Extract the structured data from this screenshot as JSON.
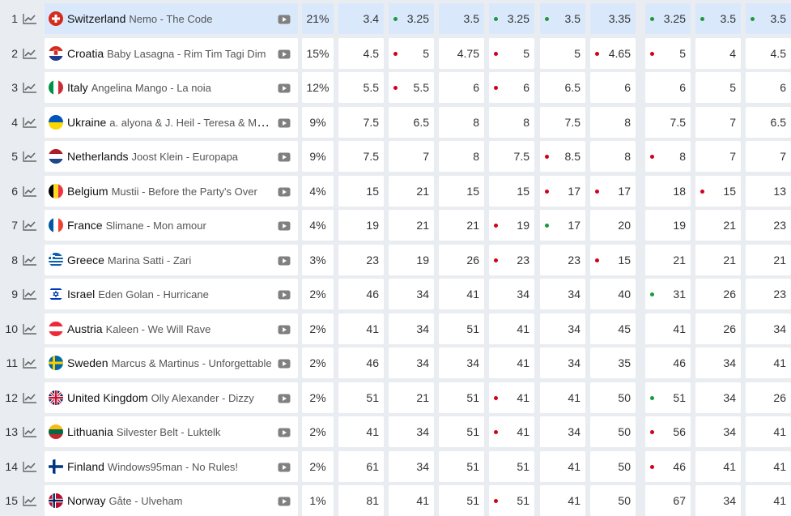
{
  "colors": {
    "highlight": "#d9e9fb",
    "dot_up": "#1a9b3a",
    "dot_down": "#d0021b"
  },
  "rows": [
    {
      "rank": "1",
      "country": "Switzerland",
      "song": "Nemo - The Code",
      "pct": "21%",
      "flag": "switzerland-flag-icon",
      "highlight": true,
      "odds": [
        {
          "v": "3.4",
          "dot": ""
        },
        {
          "v": "3.25",
          "dot": "up"
        },
        {
          "v": "3.5",
          "dot": ""
        },
        {
          "v": "3.25",
          "dot": "up"
        },
        {
          "v": "3.5",
          "dot": "up"
        },
        {
          "v": "3.35",
          "dot": ""
        },
        {
          "v": "3.25",
          "dot": "up"
        },
        {
          "v": "3.5",
          "dot": "up"
        },
        {
          "v": "3.5",
          "dot": "up"
        }
      ]
    },
    {
      "rank": "2",
      "country": "Croatia",
      "song": "Baby Lasagna - Rim Tim Tagi Dim",
      "pct": "15%",
      "flag": "croatia-flag-icon",
      "odds": [
        {
          "v": "4.5",
          "dot": ""
        },
        {
          "v": "5",
          "dot": "down"
        },
        {
          "v": "4.75",
          "dot": ""
        },
        {
          "v": "5",
          "dot": "down"
        },
        {
          "v": "5",
          "dot": ""
        },
        {
          "v": "4.65",
          "dot": "down"
        },
        {
          "v": "5",
          "dot": "down"
        },
        {
          "v": "4",
          "dot": ""
        },
        {
          "v": "4.5",
          "dot": ""
        }
      ]
    },
    {
      "rank": "3",
      "country": "Italy",
      "song": "Angelina Mango - La noia",
      "pct": "12%",
      "flag": "italy-flag-icon",
      "odds": [
        {
          "v": "5.5",
          "dot": ""
        },
        {
          "v": "5.5",
          "dot": "down"
        },
        {
          "v": "6",
          "dot": ""
        },
        {
          "v": "6",
          "dot": "down"
        },
        {
          "v": "6.5",
          "dot": ""
        },
        {
          "v": "6",
          "dot": ""
        },
        {
          "v": "6",
          "dot": ""
        },
        {
          "v": "5",
          "dot": ""
        },
        {
          "v": "6",
          "dot": ""
        }
      ]
    },
    {
      "rank": "4",
      "country": "Ukraine",
      "song": "a. alyona & J. Heil - Teresa & Maria",
      "pct": "9%",
      "flag": "ukraine-flag-icon",
      "odds": [
        {
          "v": "7.5",
          "dot": ""
        },
        {
          "v": "6.5",
          "dot": ""
        },
        {
          "v": "8",
          "dot": ""
        },
        {
          "v": "8",
          "dot": ""
        },
        {
          "v": "7.5",
          "dot": ""
        },
        {
          "v": "8",
          "dot": ""
        },
        {
          "v": "7.5",
          "dot": ""
        },
        {
          "v": "7",
          "dot": ""
        },
        {
          "v": "6.5",
          "dot": ""
        }
      ]
    },
    {
      "rank": "5",
      "country": "Netherlands",
      "song": "Joost Klein - Europapa",
      "pct": "9%",
      "flag": "netherlands-flag-icon",
      "odds": [
        {
          "v": "7.5",
          "dot": ""
        },
        {
          "v": "7",
          "dot": ""
        },
        {
          "v": "8",
          "dot": ""
        },
        {
          "v": "7.5",
          "dot": ""
        },
        {
          "v": "8.5",
          "dot": "down"
        },
        {
          "v": "8",
          "dot": ""
        },
        {
          "v": "8",
          "dot": "down"
        },
        {
          "v": "7",
          "dot": ""
        },
        {
          "v": "7",
          "dot": ""
        }
      ]
    },
    {
      "rank": "6",
      "country": "Belgium",
      "song": "Mustii - Before the Party's Over",
      "pct": "4%",
      "flag": "belgium-flag-icon",
      "odds": [
        {
          "v": "15",
          "dot": ""
        },
        {
          "v": "21",
          "dot": ""
        },
        {
          "v": "15",
          "dot": ""
        },
        {
          "v": "15",
          "dot": ""
        },
        {
          "v": "17",
          "dot": "down"
        },
        {
          "v": "17",
          "dot": "down"
        },
        {
          "v": "18",
          "dot": ""
        },
        {
          "v": "15",
          "dot": "down"
        },
        {
          "v": "13",
          "dot": ""
        }
      ]
    },
    {
      "rank": "7",
      "country": "France",
      "song": "Slimane - Mon amour",
      "pct": "4%",
      "flag": "france-flag-icon",
      "odds": [
        {
          "v": "19",
          "dot": ""
        },
        {
          "v": "21",
          "dot": ""
        },
        {
          "v": "21",
          "dot": ""
        },
        {
          "v": "19",
          "dot": "down"
        },
        {
          "v": "17",
          "dot": "up"
        },
        {
          "v": "20",
          "dot": ""
        },
        {
          "v": "19",
          "dot": ""
        },
        {
          "v": "21",
          "dot": ""
        },
        {
          "v": "23",
          "dot": ""
        }
      ]
    },
    {
      "rank": "8",
      "country": "Greece",
      "song": "Marina Satti - Zari",
      "pct": "3%",
      "flag": "greece-flag-icon",
      "odds": [
        {
          "v": "23",
          "dot": ""
        },
        {
          "v": "19",
          "dot": ""
        },
        {
          "v": "26",
          "dot": ""
        },
        {
          "v": "23",
          "dot": "down"
        },
        {
          "v": "23",
          "dot": ""
        },
        {
          "v": "15",
          "dot": "down"
        },
        {
          "v": "21",
          "dot": ""
        },
        {
          "v": "21",
          "dot": ""
        },
        {
          "v": "21",
          "dot": ""
        }
      ]
    },
    {
      "rank": "9",
      "country": "Israel",
      "song": "Eden Golan - Hurricane",
      "pct": "2%",
      "flag": "israel-flag-icon",
      "odds": [
        {
          "v": "46",
          "dot": ""
        },
        {
          "v": "34",
          "dot": ""
        },
        {
          "v": "41",
          "dot": ""
        },
        {
          "v": "34",
          "dot": ""
        },
        {
          "v": "34",
          "dot": ""
        },
        {
          "v": "40",
          "dot": ""
        },
        {
          "v": "31",
          "dot": "up"
        },
        {
          "v": "26",
          "dot": ""
        },
        {
          "v": "23",
          "dot": ""
        }
      ]
    },
    {
      "rank": "10",
      "country": "Austria",
      "song": "Kaleen - We Will Rave",
      "pct": "2%",
      "flag": "austria-flag-icon",
      "odds": [
        {
          "v": "41",
          "dot": ""
        },
        {
          "v": "34",
          "dot": ""
        },
        {
          "v": "51",
          "dot": ""
        },
        {
          "v": "41",
          "dot": ""
        },
        {
          "v": "34",
          "dot": ""
        },
        {
          "v": "45",
          "dot": ""
        },
        {
          "v": "41",
          "dot": ""
        },
        {
          "v": "26",
          "dot": ""
        },
        {
          "v": "34",
          "dot": ""
        }
      ]
    },
    {
      "rank": "11",
      "country": "Sweden",
      "song": "Marcus & Martinus - Unforgettable",
      "pct": "2%",
      "flag": "sweden-flag-icon",
      "odds": [
        {
          "v": "46",
          "dot": ""
        },
        {
          "v": "34",
          "dot": ""
        },
        {
          "v": "34",
          "dot": ""
        },
        {
          "v": "41",
          "dot": ""
        },
        {
          "v": "34",
          "dot": ""
        },
        {
          "v": "35",
          "dot": ""
        },
        {
          "v": "46",
          "dot": ""
        },
        {
          "v": "34",
          "dot": ""
        },
        {
          "v": "41",
          "dot": ""
        }
      ]
    },
    {
      "rank": "12",
      "country": "United Kingdom",
      "song": "Olly Alexander - Dizzy",
      "pct": "2%",
      "flag": "united-kingdom-flag-icon",
      "odds": [
        {
          "v": "51",
          "dot": ""
        },
        {
          "v": "21",
          "dot": ""
        },
        {
          "v": "51",
          "dot": ""
        },
        {
          "v": "41",
          "dot": "down"
        },
        {
          "v": "41",
          "dot": ""
        },
        {
          "v": "50",
          "dot": ""
        },
        {
          "v": "51",
          "dot": "up"
        },
        {
          "v": "34",
          "dot": ""
        },
        {
          "v": "26",
          "dot": ""
        }
      ]
    },
    {
      "rank": "13",
      "country": "Lithuania",
      "song": "Silvester Belt - Luktelk",
      "pct": "2%",
      "flag": "lithuania-flag-icon",
      "odds": [
        {
          "v": "41",
          "dot": ""
        },
        {
          "v": "34",
          "dot": ""
        },
        {
          "v": "51",
          "dot": ""
        },
        {
          "v": "41",
          "dot": "down"
        },
        {
          "v": "34",
          "dot": ""
        },
        {
          "v": "50",
          "dot": ""
        },
        {
          "v": "56",
          "dot": "down"
        },
        {
          "v": "34",
          "dot": ""
        },
        {
          "v": "41",
          "dot": ""
        }
      ]
    },
    {
      "rank": "14",
      "country": "Finland",
      "song": "Windows95man - No Rules!",
      "pct": "2%",
      "flag": "finland-flag-icon",
      "odds": [
        {
          "v": "61",
          "dot": ""
        },
        {
          "v": "34",
          "dot": ""
        },
        {
          "v": "51",
          "dot": ""
        },
        {
          "v": "51",
          "dot": ""
        },
        {
          "v": "41",
          "dot": ""
        },
        {
          "v": "50",
          "dot": ""
        },
        {
          "v": "46",
          "dot": "down"
        },
        {
          "v": "41",
          "dot": ""
        },
        {
          "v": "41",
          "dot": ""
        }
      ]
    },
    {
      "rank": "15",
      "country": "Norway",
      "song": "Gåte - Ulveham",
      "pct": "1%",
      "flag": "norway-flag-icon",
      "odds": [
        {
          "v": "81",
          "dot": ""
        },
        {
          "v": "41",
          "dot": ""
        },
        {
          "v": "51",
          "dot": ""
        },
        {
          "v": "51",
          "dot": "down"
        },
        {
          "v": "41",
          "dot": ""
        },
        {
          "v": "50",
          "dot": ""
        },
        {
          "v": "67",
          "dot": ""
        },
        {
          "v": "34",
          "dot": ""
        },
        {
          "v": "41",
          "dot": ""
        }
      ]
    }
  ]
}
